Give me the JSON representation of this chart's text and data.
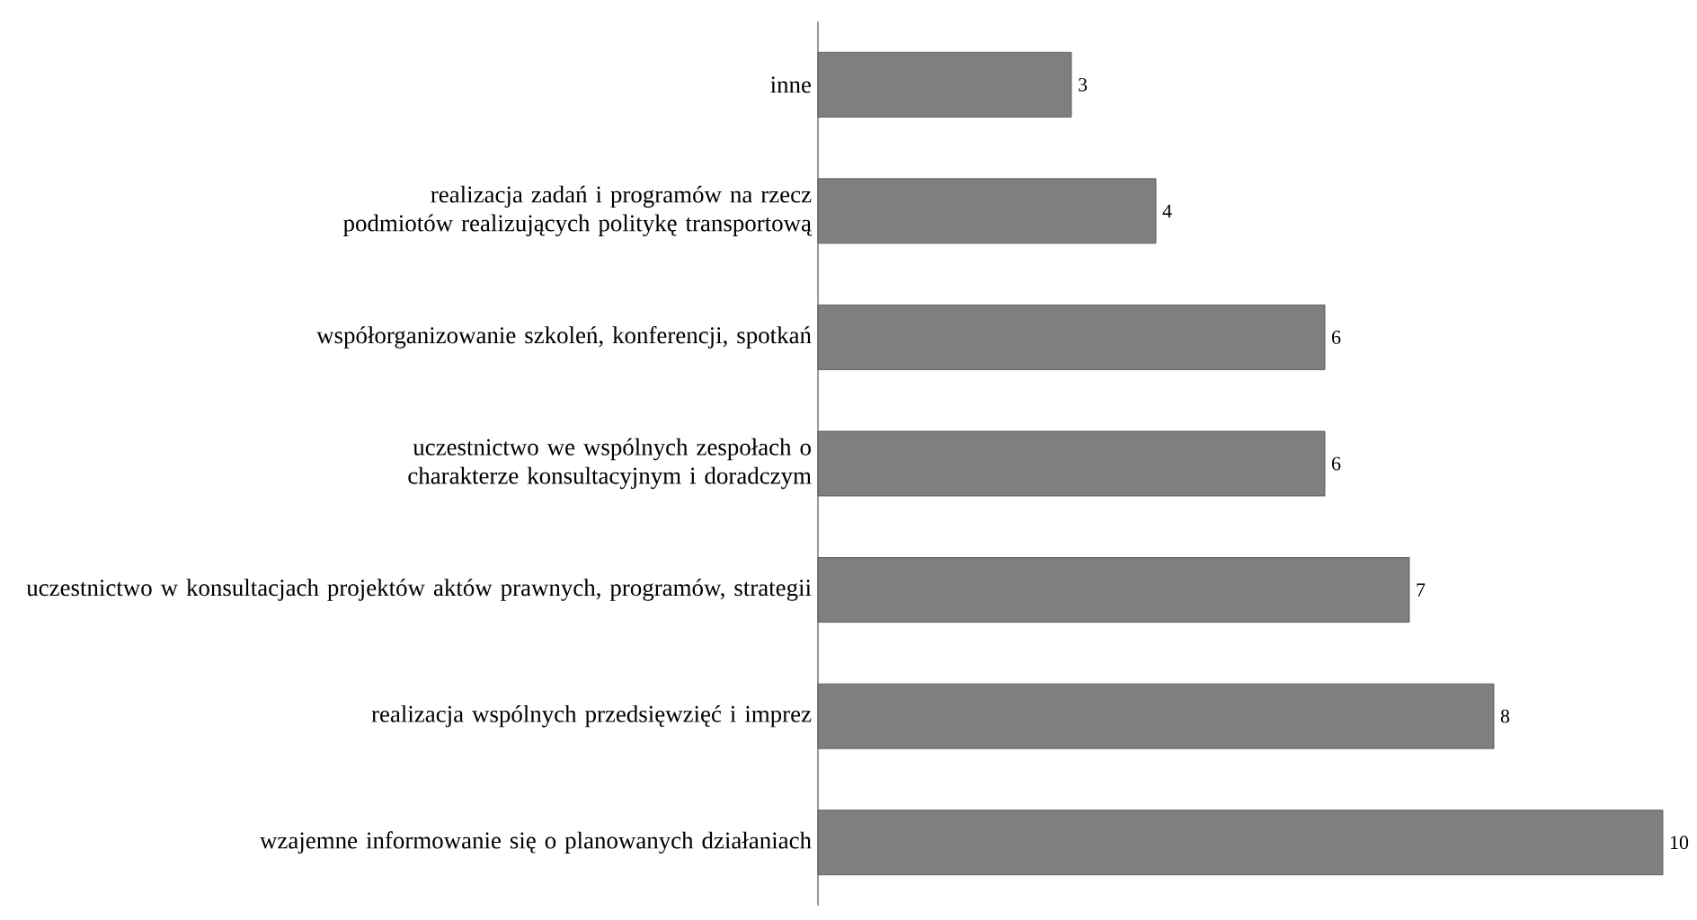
{
  "chart_data": {
    "type": "bar",
    "orientation": "horizontal",
    "categories": [
      "inne",
      "realizacja zadań i programów na rzecz podmiotów realizujących politykę transportową",
      "współorganizowanie szkoleń, konferencji, spotkań",
      "uczestnictwo we wspólnych zespołach  o charakterze konsultacyjnym i doradczym",
      "uczestnictwo w konsultacjach projektów aktów prawnych, programów, strategii",
      "realizacja wspólnych przedsięwzięć i imprez",
      "wzajemne informowanie się o planowanych działaniach"
    ],
    "values": [
      3,
      4,
      6,
      6,
      7,
      8,
      10
    ],
    "color": "#7f7f7f",
    "data_labels": true
  }
}
